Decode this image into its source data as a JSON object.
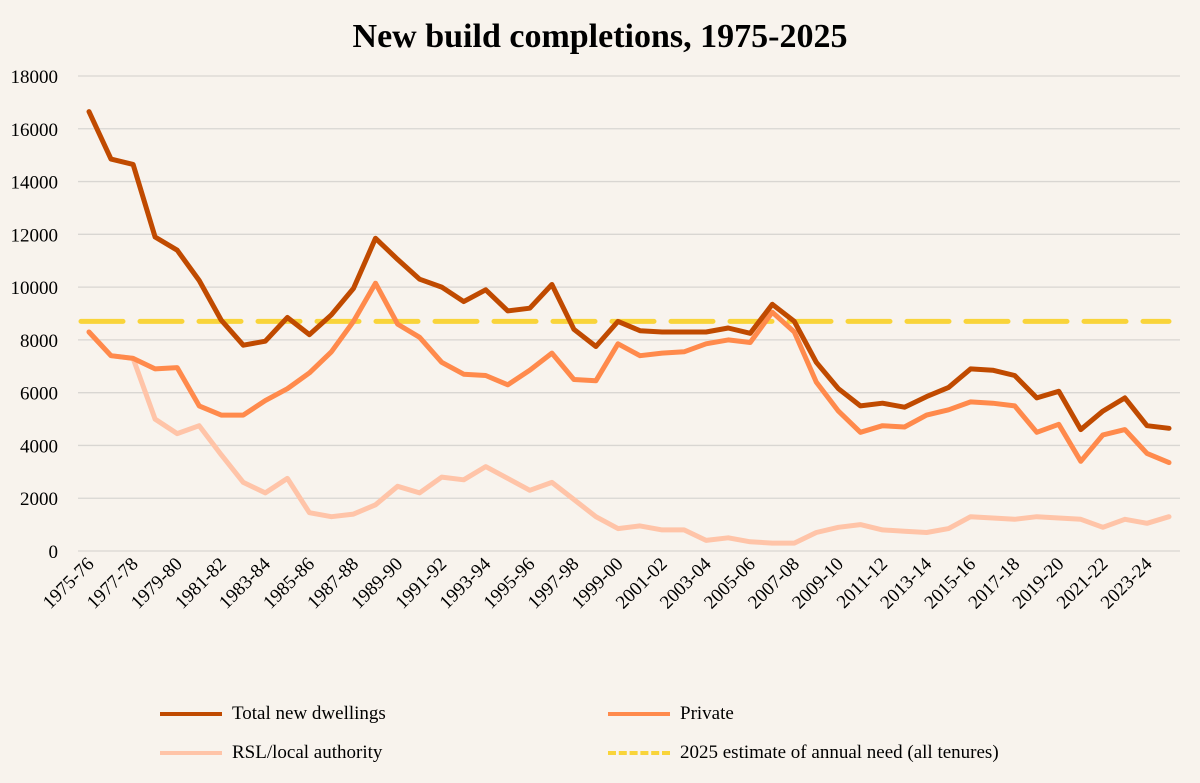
{
  "chart_data": {
    "type": "line",
    "title": "New build completions, 1975-2025",
    "xlabel": "",
    "ylabel": "",
    "ylim": [
      0,
      18000
    ],
    "yticks": [
      0,
      2000,
      4000,
      6000,
      8000,
      10000,
      12000,
      14000,
      16000,
      18000
    ],
    "grid": true,
    "legend_placement": "bottom",
    "categories": [
      "1975-76",
      "1976-77",
      "1977-78",
      "1978-79",
      "1979-80",
      "1980-81",
      "1981-82",
      "1982-83",
      "1983-84",
      "1984-85",
      "1985-86",
      "1986-87",
      "1987-88",
      "1988-89",
      "1989-90",
      "1990-91",
      "1991-92",
      "1992-93",
      "1993-94",
      "1994-95",
      "1995-96",
      "1996-97",
      "1997-98",
      "1998-99",
      "1999-00",
      "2000-01",
      "2001-02",
      "2002-03",
      "2003-04",
      "2004-05",
      "2005-06",
      "2006-07",
      "2007-08",
      "2008-09",
      "2009-10",
      "2010-11",
      "2011-12",
      "2012-13",
      "2013-14",
      "2014-15",
      "2015-16",
      "2016-17",
      "2017-18",
      "2018-19",
      "2019-20",
      "2020-21",
      "2021-22",
      "2022-23",
      "2023-24",
      "2024-25"
    ],
    "xtick_labels": [
      "1975-76",
      "1977-78",
      "1979-80",
      "1981-82",
      "1983-84",
      "1985-86",
      "1987-88",
      "1989-90",
      "1991-92",
      "1993-94",
      "1995-96",
      "1997-98",
      "1999-00",
      "2001-02",
      "2003-04",
      "2005-06",
      "2007-08",
      "2009-10",
      "2011-12",
      "2013-14",
      "2015-16",
      "2017-18",
      "2019-20",
      "2021-22",
      "2023-24"
    ],
    "series": [
      {
        "name": "Total new dwellings",
        "color": "#c04a00",
        "style": "solid",
        "values": [
          16650,
          14850,
          14650,
          11900,
          11400,
          10250,
          8750,
          7800,
          7950,
          8850,
          8200,
          8950,
          9950,
          11850,
          11050,
          10300,
          10000,
          9450,
          9900,
          9100,
          9200,
          10100,
          8400,
          7750,
          8700,
          8350,
          8300,
          8300,
          8300,
          8450,
          8250,
          9350,
          8700,
          7150,
          6150,
          5500,
          5600,
          5450,
          5850,
          6200,
          6900,
          6850,
          6650,
          5800,
          6050,
          4600,
          5300,
          5800,
          4750,
          4650
        ]
      },
      {
        "name": "Private",
        "color": "#ff8a4c",
        "style": "solid",
        "values": [
          8300,
          7400,
          7300,
          6900,
          6950,
          5500,
          5150,
          5150,
          5700,
          6150,
          6750,
          7550,
          8700,
          10150,
          8600,
          8100,
          7150,
          6700,
          6650,
          6300,
          6850,
          7500,
          6500,
          6450,
          7850,
          7400,
          7500,
          7550,
          7850,
          8000,
          7900,
          9050,
          8300,
          6400,
          5300,
          4500,
          4750,
          4700,
          5150,
          5350,
          5650,
          5600,
          5500,
          4500,
          4800,
          3400,
          4400,
          4600,
          3700,
          3350
        ]
      },
      {
        "name": "RSL/local authority",
        "color": "#ffc4a8",
        "style": "solid",
        "values": [
          8300,
          7400,
          7300,
          5000,
          4450,
          4750,
          3650,
          2600,
          2200,
          2750,
          1450,
          1300,
          1400,
          1750,
          2450,
          2200,
          2800,
          2700,
          3200,
          2750,
          2300,
          2600,
          1950,
          1300,
          850,
          950,
          800,
          800,
          400,
          500,
          350,
          300,
          300,
          700,
          900,
          1000,
          800,
          750,
          700,
          850,
          1300,
          1250,
          1200,
          1300,
          1250,
          1200,
          900,
          1200,
          1050,
          1300
        ]
      },
      {
        "name": "2025 estimate of annual need (all tenures)",
        "color": "#f9d43a",
        "style": "dashed",
        "constant": 8700
      }
    ]
  }
}
